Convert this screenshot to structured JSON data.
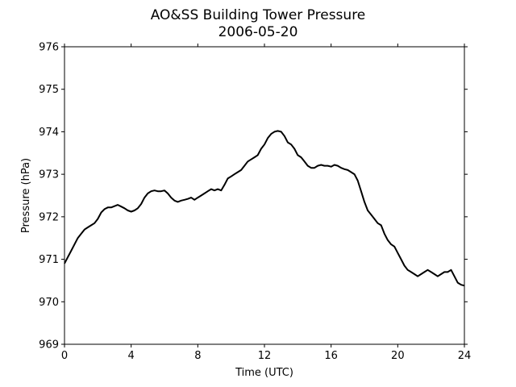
{
  "chart_data": {
    "type": "line",
    "title": "AO&SS Building Tower Pressure",
    "subtitle": "2006-05-20",
    "xlabel": "Time (UTC)",
    "ylabel": "Pressure (hPa)",
    "xlim": [
      0,
      24
    ],
    "ylim": [
      969,
      976
    ],
    "xticks": [
      0,
      4,
      8,
      12,
      16,
      20,
      24
    ],
    "yticks": [
      969,
      970,
      971,
      972,
      973,
      974,
      975,
      976
    ],
    "grid": false,
    "line_color": "#000000",
    "series": [
      {
        "x": [
          0,
          0.2,
          0.4,
          0.6,
          0.8,
          1.0,
          1.2,
          1.4,
          1.6,
          1.8,
          2.0,
          2.2,
          2.4,
          2.6,
          2.8,
          3.0,
          3.2,
          3.4,
          3.6,
          3.8,
          4.0,
          4.2,
          4.4,
          4.6,
          4.8,
          5.0,
          5.2,
          5.4,
          5.6,
          5.8,
          6.0,
          6.2,
          6.4,
          6.6,
          6.8,
          7.0,
          7.2,
          7.4,
          7.6,
          7.8,
          8.0,
          8.2,
          8.4,
          8.6,
          8.8,
          9.0,
          9.2,
          9.4,
          9.6,
          9.8,
          10.0,
          10.2,
          10.4,
          10.6,
          10.8,
          11.0,
          11.2,
          11.4,
          11.6,
          11.8,
          12.0,
          12.2,
          12.4,
          12.6,
          12.8,
          13.0,
          13.2,
          13.4,
          13.6,
          13.8,
          14.0,
          14.2,
          14.4,
          14.6,
          14.8,
          15.0,
          15.2,
          15.4,
          15.6,
          15.8,
          16.0,
          16.2,
          16.4,
          16.6,
          16.8,
          17.0,
          17.2,
          17.4,
          17.6,
          17.8,
          18.0,
          18.2,
          18.4,
          18.6,
          18.8,
          19.0,
          19.2,
          19.4,
          19.6,
          19.8,
          20.0,
          20.2,
          20.4,
          20.6,
          20.8,
          21.0,
          21.2,
          21.4,
          21.6,
          21.8,
          22.0,
          22.2,
          22.4,
          22.6,
          22.8,
          23.0,
          23.2,
          23.4,
          23.6,
          23.8,
          24.0
        ],
        "values": [
          970.9,
          971.05,
          971.2,
          971.35,
          971.5,
          971.6,
          971.7,
          971.75,
          971.8,
          971.85,
          971.95,
          972.1,
          972.18,
          972.22,
          972.22,
          972.25,
          972.28,
          972.24,
          972.2,
          972.15,
          972.12,
          972.15,
          972.2,
          972.3,
          972.45,
          972.55,
          972.6,
          972.62,
          972.6,
          972.6,
          972.62,
          972.55,
          972.45,
          972.38,
          972.35,
          972.38,
          972.4,
          972.42,
          972.45,
          972.4,
          972.45,
          972.5,
          972.55,
          972.6,
          972.65,
          972.62,
          972.65,
          972.62,
          972.75,
          972.9,
          972.95,
          973.0,
          973.05,
          973.1,
          973.2,
          973.3,
          973.35,
          973.4,
          973.45,
          973.6,
          973.7,
          973.85,
          973.95,
          974.0,
          974.02,
          974.0,
          973.9,
          973.75,
          973.7,
          973.6,
          973.45,
          973.4,
          973.3,
          973.2,
          973.15,
          973.15,
          973.2,
          973.22,
          973.2,
          973.2,
          973.18,
          973.22,
          973.2,
          973.15,
          973.12,
          973.1,
          973.05,
          973.0,
          972.85,
          972.6,
          972.35,
          972.15,
          972.05,
          971.95,
          971.85,
          971.8,
          971.6,
          971.45,
          971.35,
          971.3,
          971.15,
          971.0,
          970.85,
          970.75,
          970.7,
          970.65,
          970.6,
          970.65,
          970.7,
          970.75,
          970.7,
          970.65,
          970.6,
          970.65,
          970.7,
          970.7,
          970.75,
          970.6,
          970.45,
          970.4,
          970.38
        ]
      }
    ]
  }
}
